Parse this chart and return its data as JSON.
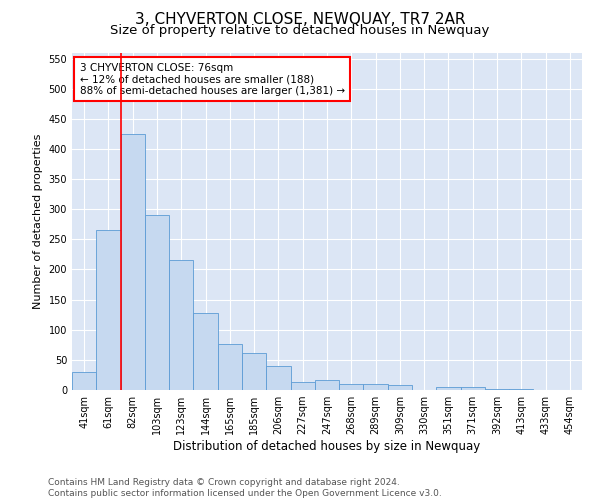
{
  "title": "3, CHYVERTON CLOSE, NEWQUAY, TR7 2AR",
  "subtitle": "Size of property relative to detached houses in Newquay",
  "xlabel": "Distribution of detached houses by size in Newquay",
  "ylabel": "Number of detached properties",
  "bin_labels": [
    "41sqm",
    "61sqm",
    "82sqm",
    "103sqm",
    "123sqm",
    "144sqm",
    "165sqm",
    "185sqm",
    "206sqm",
    "227sqm",
    "247sqm",
    "268sqm",
    "289sqm",
    "309sqm",
    "330sqm",
    "351sqm",
    "371sqm",
    "392sqm",
    "413sqm",
    "433sqm",
    "454sqm"
  ],
  "bar_values": [
    30,
    265,
    425,
    290,
    215,
    128,
    77,
    62,
    40,
    14,
    17,
    10,
    10,
    8,
    0,
    5,
    5,
    2,
    2,
    0,
    0
  ],
  "bar_color": "#c6d9f0",
  "bar_edge_color": "#5b9bd5",
  "red_line_x": 1.5,
  "annotation_text": "3 CHYVERTON CLOSE: 76sqm\n← 12% of detached houses are smaller (188)\n88% of semi-detached houses are larger (1,381) →",
  "annotation_box_color": "white",
  "annotation_border_color": "red",
  "ylim": [
    0,
    560
  ],
  "yticks": [
    0,
    50,
    100,
    150,
    200,
    250,
    300,
    350,
    400,
    450,
    500,
    550
  ],
  "plot_bg_color": "#dce6f5",
  "grid_color": "white",
  "title_fontsize": 11,
  "subtitle_fontsize": 9.5,
  "ylabel_fontsize": 8,
  "xlabel_fontsize": 8.5,
  "tick_fontsize": 7,
  "annotation_fontsize": 7.5,
  "footer_fontsize": 6.5,
  "footer_line1": "Contains HM Land Registry data © Crown copyright and database right 2024.",
  "footer_line2": "Contains public sector information licensed under the Open Government Licence v3.0."
}
